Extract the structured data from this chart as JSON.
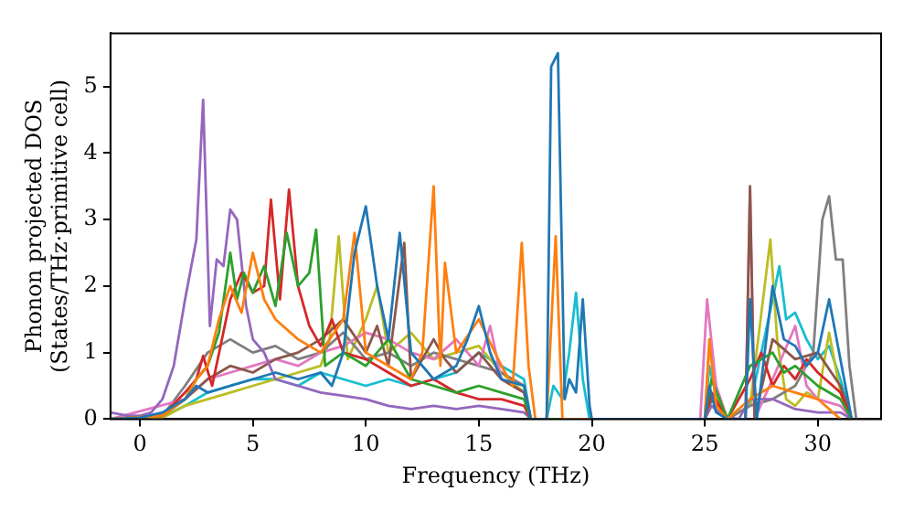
{
  "chart_data": {
    "type": "line",
    "xlabel": "Frequency (THz)",
    "ylabel": "Phonon projected DOS\n(States/THz·primitive cell)",
    "xlim": [
      -1.3,
      32.8
    ],
    "ylim": [
      0,
      5.8
    ],
    "xticks": [
      0,
      5,
      10,
      15,
      20,
      25,
      30
    ],
    "yticks": [
      0,
      1,
      2,
      3,
      4,
      5
    ],
    "grid": false,
    "legend": false,
    "marker": "none",
    "line_style": "solid",
    "series": [
      {
        "color": "#1f77b4",
        "x": [
          -1.3,
          0,
          1,
          2,
          2.5,
          3,
          4,
          5,
          6,
          7,
          8,
          8.5,
          9,
          9.5,
          10,
          10.5,
          11,
          11.5,
          12,
          13,
          14,
          14.5,
          15,
          15.5,
          16,
          17,
          17.3,
          18,
          18.2,
          18.5,
          18.8,
          19,
          19.3,
          19.6,
          19.9,
          20,
          25,
          25.2,
          25.5,
          26,
          26.8,
          27,
          27.3,
          28,
          28.5,
          29,
          29.5,
          30,
          30.5,
          31,
          31.5
        ],
        "values": [
          0,
          0.02,
          0.1,
          0.3,
          0.5,
          0.4,
          0.5,
          0.6,
          0.7,
          0.6,
          0.7,
          0.5,
          1.0,
          2.5,
          3.2,
          2.0,
          1.2,
          2.8,
          1.0,
          0.6,
          0.8,
          1.2,
          1.7,
          1.0,
          0.6,
          0.5,
          0,
          0,
          5.3,
          5.5,
          0.3,
          0.6,
          0.4,
          1.8,
          0.2,
          0,
          0,
          0.5,
          0.1,
          0,
          0,
          1.8,
          0,
          2.0,
          1.2,
          1.1,
          0.8,
          1.0,
          1.8,
          0.9,
          0
        ]
      },
      {
        "color": "#ff7f0e",
        "x": [
          -1.3,
          1,
          2,
          2.5,
          3,
          3.5,
          4,
          4.5,
          5,
          5.5,
          6,
          7,
          8,
          9,
          9.5,
          10,
          11,
          12,
          12.5,
          13,
          13.3,
          13.5,
          14,
          15,
          16,
          16.5,
          16.9,
          17.2,
          17.5,
          18,
          18.4,
          18.7,
          19,
          25,
          25.2,
          25.5,
          26,
          27,
          28,
          29,
          30,
          31
        ],
        "values": [
          0,
          0.05,
          0.3,
          0.6,
          0.8,
          1.5,
          2.0,
          1.6,
          2.5,
          1.8,
          1.5,
          1.2,
          1.0,
          1.5,
          2.8,
          1.0,
          0.8,
          0.6,
          1.0,
          3.5,
          0.8,
          2.35,
          1.0,
          1.5,
          0.8,
          0.5,
          2.65,
          0.8,
          0,
          0,
          2.75,
          0,
          0,
          0,
          1.2,
          0.2,
          0,
          0.3,
          0.5,
          0.4,
          0.3,
          0
        ]
      },
      {
        "color": "#2ca02c",
        "x": [
          -1.3,
          1,
          2,
          2.5,
          3,
          3.5,
          4,
          4.3,
          4.6,
          5,
          5.5,
          6,
          6.5,
          7,
          7.5,
          7.8,
          8.2,
          9,
          10,
          11,
          12,
          13,
          14,
          15,
          16,
          17,
          17.3,
          25,
          25.3,
          26,
          27,
          28,
          28.5,
          29,
          30,
          31,
          31.5
        ],
        "values": [
          0,
          0.05,
          0.3,
          0.6,
          0.8,
          1.3,
          2.5,
          1.8,
          2.2,
          1.9,
          2.3,
          1.7,
          2.8,
          2.0,
          2.2,
          2.85,
          0.8,
          1.0,
          0.8,
          1.2,
          0.6,
          0.5,
          0.4,
          0.5,
          0.4,
          0.3,
          0,
          0,
          0.6,
          0,
          0.8,
          1.0,
          0.7,
          0.8,
          0.5,
          0.3,
          0
        ]
      },
      {
        "color": "#d62728",
        "x": [
          -1.3,
          1,
          2,
          2.5,
          2.8,
          3.2,
          4,
          4.5,
          5,
          5.5,
          5.8,
          6.2,
          6.6,
          7,
          7.5,
          8,
          8.5,
          9,
          10,
          11,
          12,
          13,
          14,
          15,
          16,
          17,
          17.3,
          25,
          25.3,
          26,
          27,
          27.5,
          28,
          28.5,
          29,
          29.5,
          30,
          31,
          31.5
        ],
        "values": [
          0,
          0.05,
          0.4,
          0.6,
          0.95,
          0.5,
          1.8,
          2.2,
          1.9,
          2.0,
          3.3,
          1.8,
          3.45,
          2.0,
          1.4,
          1.1,
          1.5,
          1.0,
          0.9,
          0.7,
          0.5,
          0.6,
          0.4,
          0.3,
          0.3,
          0.2,
          0,
          0,
          0.4,
          0,
          0.6,
          1.0,
          0.5,
          0.8,
          0.6,
          0.9,
          0.7,
          0.4,
          0
        ]
      },
      {
        "color": "#9467bd",
        "x": [
          -1.3,
          -0.5,
          0,
          0.5,
          1,
          1.5,
          2,
          2.5,
          2.8,
          3.1,
          3.4,
          3.7,
          4,
          4.3,
          4.7,
          5,
          5.5,
          6,
          7,
          8,
          9,
          10,
          11,
          12,
          13,
          14,
          15,
          16,
          17,
          17.3,
          25,
          25.3,
          25.8,
          26.5,
          27,
          28,
          29,
          30,
          31,
          31.5
        ],
        "values": [
          0.1,
          0.05,
          0.05,
          0.1,
          0.3,
          0.8,
          1.8,
          2.7,
          4.8,
          1.4,
          2.4,
          2.3,
          3.15,
          3.0,
          1.7,
          1.2,
          1.0,
          0.6,
          0.5,
          0.4,
          0.35,
          0.3,
          0.2,
          0.15,
          0.2,
          0.15,
          0.2,
          0.15,
          0.1,
          0,
          0,
          0.2,
          0.05,
          0,
          0.3,
          0.3,
          0.15,
          0.1,
          0.1,
          0
        ]
      },
      {
        "color": "#8c564b",
        "x": [
          -1.3,
          1,
          2,
          3,
          4,
          5,
          6,
          7,
          8,
          9,
          10,
          10.5,
          11,
          11.7,
          12,
          13,
          13.5,
          14,
          15,
          16,
          17,
          17.3,
          25,
          25.3,
          26,
          26.8,
          27,
          27.2,
          28,
          29,
          30,
          31,
          31.5
        ],
        "values": [
          0,
          0.05,
          0.3,
          0.6,
          0.8,
          0.7,
          0.9,
          1.0,
          1.2,
          1.5,
          1.0,
          1.4,
          0.8,
          2.65,
          0.6,
          1.2,
          0.9,
          0.7,
          1.0,
          0.6,
          0.4,
          0,
          0,
          0.3,
          0,
          0,
          3.5,
          0,
          1.2,
          0.9,
          1.0,
          0.5,
          0
        ]
      },
      {
        "color": "#e377c2",
        "x": [
          -1.3,
          2,
          3,
          4,
          5,
          6,
          7,
          8,
          9,
          10,
          11,
          12,
          13,
          14,
          15,
          15.5,
          16,
          17,
          17.3,
          24.8,
          25.1,
          25.5,
          26,
          26.8,
          27,
          27.2,
          28,
          29,
          29.5,
          30,
          31,
          31.5
        ],
        "values": [
          0,
          0.3,
          0.6,
          0.7,
          0.8,
          0.9,
          0.8,
          1.0,
          1.1,
          1.3,
          1.2,
          1.0,
          0.9,
          1.2,
          0.8,
          1.4,
          0.6,
          0.4,
          0,
          0,
          1.8,
          0.5,
          0,
          0,
          3.45,
          0,
          0.6,
          1.4,
          0.5,
          0.3,
          0.2,
          0
        ]
      },
      {
        "color": "#7f7f7f",
        "x": [
          -1.3,
          1,
          2,
          3,
          4,
          5,
          6,
          7,
          8,
          9,
          10,
          11,
          12,
          13,
          14,
          15,
          16,
          17,
          17.3,
          25,
          25.3,
          26,
          27,
          28,
          29,
          29.8,
          30.2,
          30.5,
          30.8,
          31.1,
          31.4,
          31.7
        ],
        "values": [
          0,
          0.05,
          0.5,
          1.0,
          1.2,
          1.0,
          1.1,
          0.9,
          1.0,
          1.3,
          0.9,
          1.0,
          0.8,
          1.0,
          0.9,
          0.8,
          0.7,
          0.5,
          0,
          0,
          0.3,
          0,
          0.2,
          0.3,
          0.5,
          1.0,
          3.0,
          3.35,
          2.4,
          2.4,
          0.8,
          0
        ]
      },
      {
        "color": "#bcbd22",
        "x": [
          -1.3,
          1,
          2,
          3,
          4,
          5,
          6,
          7,
          8,
          8.4,
          8.8,
          9.2,
          10,
          10.5,
          11,
          12,
          13,
          14,
          15,
          16,
          17,
          17.3,
          25,
          25.2,
          25.6,
          26,
          27,
          27.9,
          28.2,
          28.6,
          29,
          29.5,
          30,
          30.5,
          31,
          31.5
        ],
        "values": [
          0,
          0.02,
          0.2,
          0.3,
          0.4,
          0.5,
          0.6,
          0.7,
          0.8,
          1.2,
          2.75,
          0.9,
          1.5,
          2.0,
          1.0,
          1.3,
          0.9,
          1.0,
          1.1,
          0.7,
          0.4,
          0,
          0,
          1.1,
          0.3,
          0,
          0.2,
          2.7,
          1.2,
          0.3,
          0.2,
          0.4,
          0.3,
          1.3,
          0.4,
          0
        ]
      },
      {
        "color": "#17becf",
        "x": [
          -1.3,
          1,
          2,
          3,
          4,
          5,
          6,
          7,
          8,
          9,
          10,
          11,
          12,
          13,
          14,
          15,
          16,
          17,
          17.3,
          18,
          18.3,
          18.7,
          19,
          19.3,
          19.6,
          19.9,
          25,
          25.2,
          25.6,
          26,
          27,
          28,
          28.3,
          28.6,
          29,
          29.5,
          30,
          30.5,
          31,
          31.5
        ],
        "values": [
          0,
          0.03,
          0.2,
          0.4,
          0.5,
          0.6,
          0.6,
          0.5,
          0.7,
          0.6,
          0.5,
          0.6,
          0.5,
          0.6,
          0.7,
          1.0,
          0.8,
          0.6,
          0,
          0,
          0.5,
          0.3,
          1.0,
          1.9,
          0.6,
          0,
          0,
          0.8,
          0.2,
          0,
          0.2,
          1.8,
          2.3,
          1.5,
          1.6,
          1.2,
          0.9,
          1.1,
          0.6,
          0
        ]
      }
    ]
  }
}
